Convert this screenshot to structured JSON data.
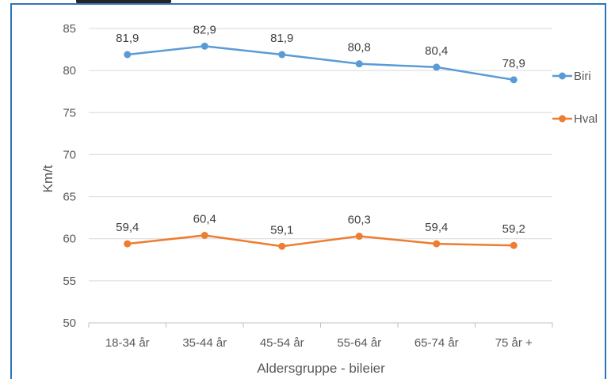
{
  "chart_data": {
    "type": "line",
    "title": "",
    "xlabel": "Aldersgruppe - bileier",
    "ylabel": "Km/t",
    "ylim": [
      50,
      85
    ],
    "y_ticks": [
      50,
      55,
      60,
      65,
      70,
      75,
      80,
      85
    ],
    "y_tick_labels": [
      "50",
      "55",
      "60",
      "65",
      "70",
      "75",
      "80",
      "85"
    ],
    "grid": true,
    "legend_position": "right",
    "categories": [
      "18-34 år",
      "35-44 år",
      "45-54 år",
      "55-64 år",
      "65-74 år",
      "75 år +"
    ],
    "series": [
      {
        "name": "Biri",
        "color": "#5b9bd5",
        "values": [
          81.9,
          82.9,
          81.9,
          80.8,
          80.4,
          78.9
        ],
        "labels": [
          "81,9",
          "82,9",
          "81,9",
          "80,8",
          "80,4",
          "78,9"
        ]
      },
      {
        "name": "Hval",
        "color": "#ed7d31",
        "values": [
          59.4,
          60.4,
          59.1,
          60.3,
          59.4,
          59.2
        ],
        "labels": [
          "59,4",
          "60,4",
          "59,1",
          "60,3",
          "59,4",
          "59,2"
        ]
      }
    ]
  }
}
